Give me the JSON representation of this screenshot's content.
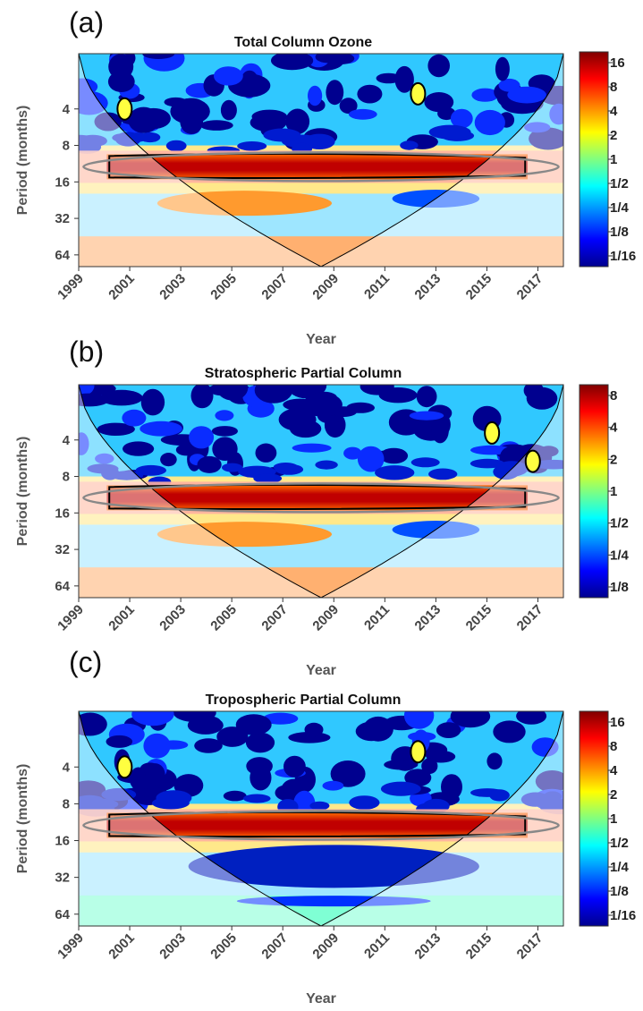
{
  "chart_data": [
    {
      "type": "heatmap",
      "panel_letter": "(a)",
      "title": "Total Column Ozone",
      "xlabel": "Year",
      "ylabel": "Period (months)",
      "xlim": [
        1999,
        2018
      ],
      "x_ticks": [
        "1999",
        "2001",
        "2003",
        "2005",
        "2007",
        "2009",
        "2011",
        "2013",
        "2015",
        "2017"
      ],
      "y_scale": "log2",
      "y_ticks": [
        "4",
        "8",
        "16",
        "32",
        "64"
      ],
      "colorbar_ticks": [
        "16",
        "8",
        "4",
        "2",
        "1",
        "1/2",
        "1/4",
        "1/8",
        "1/16"
      ],
      "colormap": "jet",
      "strong_band_period": 12
    },
    {
      "type": "heatmap",
      "panel_letter": "(b)",
      "title": "Stratospheric Partial Column",
      "xlabel": "Year",
      "ylabel": "Period (months)",
      "xlim": [
        1999,
        2018
      ],
      "x_ticks": [
        "1999",
        "2001",
        "2003",
        "2005",
        "2007",
        "2009",
        "2011",
        "2013",
        "2015",
        "2017"
      ],
      "y_scale": "log2",
      "y_ticks": [
        "4",
        "8",
        "16",
        "32",
        "64"
      ],
      "colorbar_ticks": [
        "8",
        "4",
        "2",
        "1",
        "1/2",
        "1/4",
        "1/8"
      ],
      "colormap": "jet",
      "strong_band_period": 12
    },
    {
      "type": "heatmap",
      "panel_letter": "(c)",
      "title": "Tropospheric Partial Column",
      "xlabel": "Year",
      "ylabel": "Period (months)",
      "xlim": [
        1999,
        2018
      ],
      "x_ticks": [
        "1999",
        "2001",
        "2003",
        "2005",
        "2007",
        "2009",
        "2011",
        "2013",
        "2015",
        "2017"
      ],
      "y_scale": "log2",
      "y_ticks": [
        "4",
        "8",
        "16",
        "32",
        "64"
      ],
      "colorbar_ticks": [
        "16",
        "8",
        "4",
        "2",
        "1",
        "1/2",
        "1/4",
        "1/8",
        "1/16"
      ],
      "colormap": "jet",
      "strong_band_period": 12
    }
  ]
}
